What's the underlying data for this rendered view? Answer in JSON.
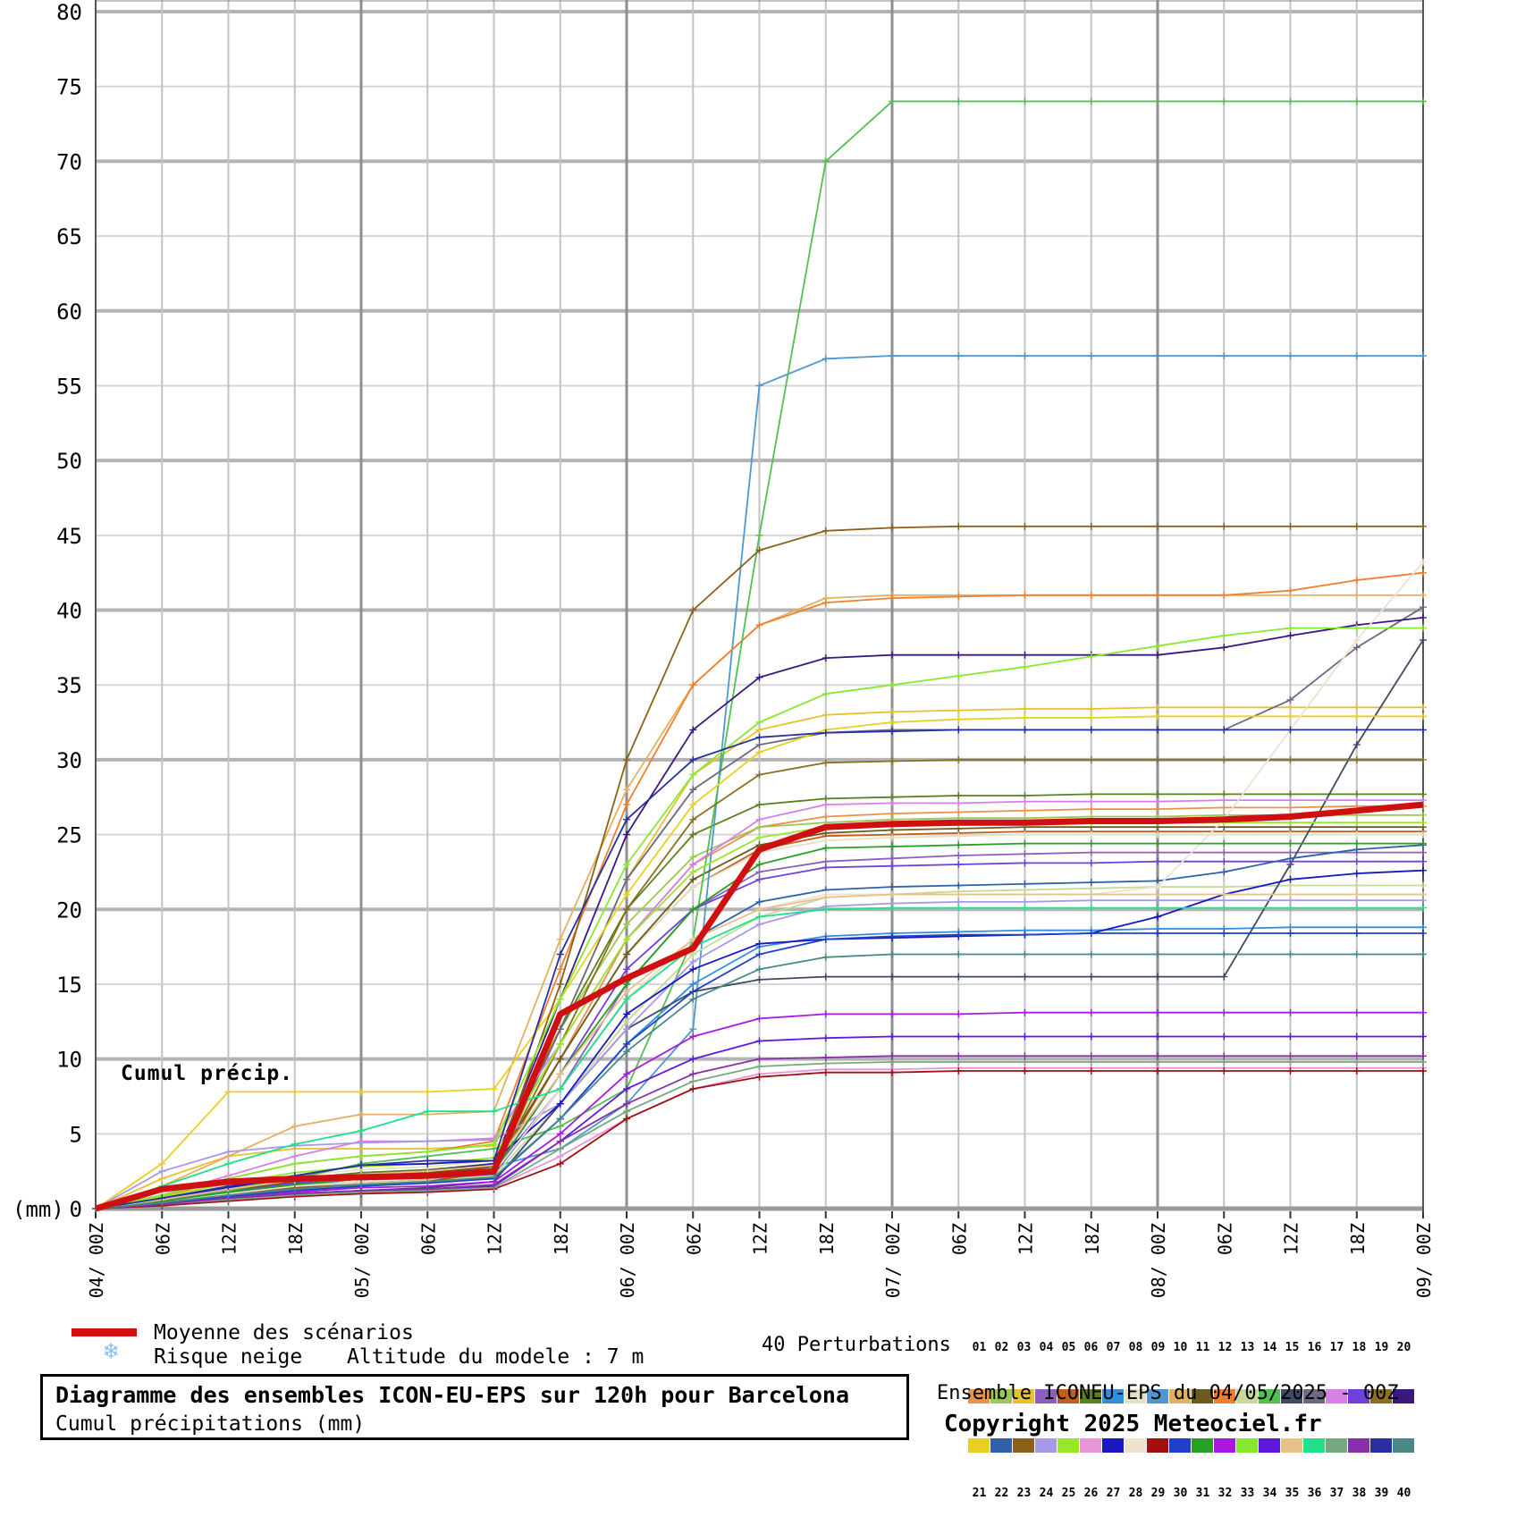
{
  "chart": {
    "annotation": "Cumul précip.",
    "y_unit_label": "(mm)",
    "y_tick_labels": [
      "0",
      "5",
      "10",
      "15",
      "20",
      "25",
      "30",
      "35",
      "40",
      "45",
      "50",
      "55",
      "60",
      "65",
      "70",
      "75",
      "80"
    ]
  },
  "legend": {
    "mean_label": "Moyenne des scénarios",
    "snow_label": "Risque neige",
    "snowflake_icon_glyph": "❄",
    "snowflake_color": "#8cc0ea",
    "altitude_label": "Altitude du modele : 7 m",
    "mean_color": "#d01010"
  },
  "perturbations": {
    "label": "40 Perturbations",
    "numbers_top": [
      "01",
      "02",
      "03",
      "04",
      "05",
      "06",
      "07",
      "08",
      "09",
      "10",
      "11",
      "12",
      "13",
      "14",
      "15",
      "16",
      "17",
      "18",
      "19",
      "20"
    ],
    "numbers_bottom": [
      "21",
      "22",
      "23",
      "24",
      "25",
      "26",
      "27",
      "28",
      "29",
      "30",
      "31",
      "32",
      "33",
      "34",
      "35",
      "36",
      "37",
      "38",
      "39",
      "40"
    ]
  },
  "footer": {
    "title": "Diagramme des ensembles ICON-EU-EPS sur 120h pour Barcelona",
    "subtitle": "Cumul précipitations (mm)",
    "ensemble_info": "Ensemble ICONEU-EPS du 04/05/2025 - 00Z",
    "copyright": "Copyright 2025 Meteociel.fr"
  },
  "chart_data": {
    "type": "line",
    "title": "Diagramme des ensembles ICON-EU-EPS sur 120h pour Barcelona",
    "subtitle": "Cumul précipitations (mm)",
    "ylabel": "(mm)",
    "ylim": [
      0,
      80.8
    ],
    "y_tick_step": 5,
    "grid": true,
    "x_hours": [
      0,
      6,
      12,
      18,
      24,
      30,
      36,
      42,
      48,
      54,
      60,
      66,
      72,
      78,
      84,
      90,
      96,
      102,
      108,
      114,
      120
    ],
    "x_tick_labels": [
      "04/ 00Z",
      "06Z",
      "12Z",
      "18Z",
      "05/ 00Z",
      "06Z",
      "12Z",
      "18Z",
      "06/ 00Z",
      "06Z",
      "12Z",
      "18Z",
      "07/ 00Z",
      "06Z",
      "12Z",
      "18Z",
      "08/ 00Z",
      "06Z",
      "12Z",
      "18Z",
      "09/ 00Z"
    ],
    "mean": {
      "name": "Moyenne des scénarios",
      "color": "#d01010",
      "values": [
        0,
        1.3,
        1.8,
        2.0,
        2.1,
        2.2,
        2.5,
        13,
        15.4,
        17.4,
        24.0,
        25.5,
        25.7,
        25.8,
        25.8,
        25.9,
        25.9,
        26.0,
        26.2,
        26.6,
        27.0
      ]
    },
    "series": [
      {
        "name": "01",
        "color": "#e8924a",
        "values": [
          0,
          0.5,
          1.0,
          1.5,
          1.8,
          2.0,
          2.5,
          10,
          18,
          23,
          25.5,
          26.2,
          26.4,
          26.5,
          26.6,
          26.7,
          26.7,
          26.8,
          26.8,
          26.9,
          26.9
        ]
      },
      {
        "name": "02",
        "color": "#9cc855",
        "values": [
          0,
          0.3,
          0.8,
          1.2,
          1.5,
          1.8,
          2.2,
          12,
          19,
          23.5,
          25.5,
          25.8,
          26.0,
          26.1,
          26.1,
          26.2,
          26.2,
          26.3,
          26.3,
          26.3,
          26.3
        ]
      },
      {
        "name": "03",
        "color": "#e8c030",
        "values": [
          0,
          2.0,
          3.5,
          4.0,
          4.0,
          4.0,
          4.2,
          12,
          22,
          29,
          32,
          33.0,
          33.2,
          33.3,
          33.4,
          33.4,
          33.5,
          33.5,
          33.5,
          33.5,
          33.5
        ]
      },
      {
        "name": "04",
        "color": "#8b5fbf",
        "values": [
          0,
          0.5,
          1.2,
          1.8,
          2.2,
          2.4,
          2.6,
          8,
          15,
          20,
          22.5,
          23.2,
          23.4,
          23.6,
          23.7,
          23.8,
          23.8,
          23.8,
          23.8,
          23.8,
          23.8
        ]
      },
      {
        "name": "05",
        "color": "#c06018",
        "values": [
          0,
          0.4,
          1.0,
          1.4,
          1.6,
          1.8,
          2.5,
          10,
          17,
          21.5,
          24,
          24.9,
          25.0,
          25.1,
          25.2,
          25.2,
          25.2,
          25.2,
          25.2,
          25.2,
          25.2
        ]
      },
      {
        "name": "06",
        "color": "#5a8020",
        "values": [
          0,
          0.6,
          1.4,
          2.0,
          2.4,
          2.6,
          3.0,
          12,
          20,
          25,
          27,
          27.4,
          27.5,
          27.6,
          27.6,
          27.7,
          27.7,
          27.7,
          27.7,
          27.7,
          27.7
        ]
      },
      {
        "name": "07",
        "color": "#2e8fe0",
        "values": [
          0,
          0.4,
          0.9,
          1.3,
          1.6,
          1.8,
          2.0,
          6,
          11,
          15,
          17.5,
          18.2,
          18.4,
          18.5,
          18.6,
          18.6,
          18.7,
          18.7,
          18.8,
          18.8,
          18.8
        ]
      },
      {
        "name": "08",
        "color": "#e6e0c4",
        "values": [
          0,
          0.8,
          1.6,
          2.2,
          2.6,
          2.8,
          3.2,
          10,
          17,
          21.5,
          23.8,
          24.6,
          24.8,
          24.9,
          25.0,
          25.0,
          25.0,
          25.0,
          25.0,
          25.0,
          25.0
        ]
      },
      {
        "name": "09",
        "color": "#4e97cf",
        "values": [
          0,
          0.5,
          1.0,
          1.5,
          2.0,
          2.2,
          2.8,
          4,
          7,
          12,
          55,
          56.8,
          57.0,
          57.0,
          57.0,
          57.0,
          57.0,
          57.0,
          57.0,
          57.0,
          57.0
        ]
      },
      {
        "name": "10",
        "color": "#e3b060",
        "values": [
          0,
          1.5,
          3.5,
          5.5,
          6.3,
          6.3,
          6.5,
          18,
          28,
          35,
          39,
          40.8,
          41.0,
          41.0,
          41.0,
          41.0,
          41.0,
          41.0,
          41.0,
          41.0,
          41.0
        ]
      },
      {
        "name": "11",
        "color": "#6b5a1e",
        "values": [
          0,
          0.6,
          1.2,
          1.8,
          2.2,
          2.4,
          2.8,
          10,
          17,
          22,
          24.3,
          25.1,
          25.3,
          25.4,
          25.5,
          25.5,
          25.5,
          25.5,
          25.5,
          25.5,
          25.5
        ]
      },
      {
        "name": "12",
        "color": "#f08030",
        "values": [
          0,
          0.8,
          2.0,
          3.0,
          3.5,
          3.8,
          4.5,
          16,
          27,
          35,
          39,
          40.5,
          40.8,
          40.9,
          41.0,
          41.0,
          41.0,
          41.0,
          41.3,
          42.0,
          42.5
        ]
      },
      {
        "name": "13",
        "color": "#c6d89a",
        "values": [
          0,
          0.4,
          0.9,
          1.4,
          1.7,
          1.9,
          2.2,
          7,
          12.5,
          17,
          19.5,
          20.8,
          21.0,
          21.2,
          21.3,
          21.4,
          21.5,
          21.5,
          21.6,
          21.6,
          21.6
        ]
      },
      {
        "name": "14",
        "color": "#50c050",
        "values": [
          0,
          0.5,
          1.2,
          2.0,
          3.0,
          3.5,
          4.0,
          5.5,
          8,
          18,
          45,
          70,
          74,
          74,
          74,
          74,
          74,
          74,
          74,
          74,
          74
        ]
      },
      {
        "name": "15",
        "color": "#3e4a62",
        "values": [
          0,
          0.3,
          0.7,
          1.0,
          1.2,
          1.4,
          1.8,
          7,
          12,
          14.5,
          15.3,
          15.5,
          15.5,
          15.5,
          15.5,
          15.5,
          15.5,
          15.5,
          23,
          31,
          38
        ]
      },
      {
        "name": "16",
        "color": "#6e6880",
        "values": [
          0,
          0.5,
          1.1,
          1.6,
          2.0,
          2.2,
          2.6,
          12,
          22,
          28,
          31,
          31.8,
          32.0,
          32.0,
          32.0,
          32.0,
          32.0,
          32.0,
          34.0,
          37.5,
          40.2
        ]
      },
      {
        "name": "17",
        "color": "#d880e8",
        "values": [
          0,
          0.9,
          2.2,
          3.5,
          4.5,
          4.5,
          4.7,
          11,
          18,
          23,
          26,
          27.0,
          27.1,
          27.1,
          27.2,
          27.2,
          27.2,
          27.3,
          27.3,
          27.3,
          27.3
        ]
      },
      {
        "name": "18",
        "color": "#7040d8",
        "values": [
          0,
          0.5,
          1.1,
          1.7,
          2.0,
          2.2,
          2.5,
          9,
          16,
          20,
          22,
          22.8,
          22.9,
          23.0,
          23.1,
          23.1,
          23.2,
          23.2,
          23.2,
          23.2,
          23.2
        ]
      },
      {
        "name": "19",
        "color": "#8a701e",
        "values": [
          0,
          0.4,
          1.0,
          1.5,
          1.8,
          2.0,
          2.4,
          11,
          20,
          26,
          29,
          29.8,
          29.9,
          30.0,
          30.0,
          30.0,
          30.0,
          30.0,
          30.0,
          30.0,
          30.0
        ]
      },
      {
        "name": "20",
        "color": "#3a1880",
        "values": [
          0,
          0.6,
          1.3,
          1.9,
          2.3,
          2.5,
          3.0,
          14,
          25,
          32,
          35.5,
          36.8,
          37.0,
          37.0,
          37.0,
          37.0,
          37.0,
          37.5,
          38.3,
          39.0,
          39.5
        ]
      },
      {
        "name": "21",
        "color": "#e8d020",
        "values": [
          0,
          3.0,
          7.8,
          7.8,
          7.8,
          7.8,
          8.0,
          14,
          21,
          27,
          30.5,
          32.0,
          32.5,
          32.7,
          32.8,
          32.8,
          32.9,
          32.9,
          32.9,
          32.9,
          32.9
        ]
      },
      {
        "name": "22",
        "color": "#3060a8",
        "values": [
          0,
          0.5,
          1.0,
          1.5,
          1.8,
          2.0,
          2.3,
          8,
          14,
          18,
          20.5,
          21.3,
          21.5,
          21.6,
          21.7,
          21.8,
          21.9,
          22.5,
          23.4,
          24.0,
          24.3
        ]
      },
      {
        "name": "23",
        "color": "#8b6018",
        "values": [
          0,
          0.4,
          1.0,
          1.4,
          1.6,
          1.8,
          2.5,
          15,
          30,
          40,
          44,
          45.3,
          45.5,
          45.6,
          45.6,
          45.6,
          45.6,
          45.6,
          45.6,
          45.6,
          45.6
        ]
      },
      {
        "name": "24",
        "color": "#a898e8",
        "values": [
          0,
          2.5,
          3.8,
          4.2,
          4.4,
          4.5,
          4.6,
          7,
          12,
          16.5,
          19,
          20.2,
          20.4,
          20.5,
          20.5,
          20.6,
          20.6,
          20.6,
          20.6,
          20.6,
          20.6
        ]
      },
      {
        "name": "25",
        "color": "#98e828",
        "values": [
          0,
          0.8,
          1.7,
          2.4,
          2.8,
          3.0,
          3.4,
          11,
          18,
          22.5,
          24.8,
          25.5,
          25.6,
          25.7,
          25.8,
          25.8,
          25.8,
          25.8,
          25.8,
          25.8,
          25.8
        ]
      },
      {
        "name": "26",
        "color": "#e895d8",
        "values": [
          0,
          0.3,
          0.6,
          0.9,
          1.1,
          1.2,
          1.4,
          3.5,
          6,
          8,
          9.0,
          9.3,
          9.3,
          9.4,
          9.4,
          9.4,
          9.4,
          9.4,
          9.4,
          9.4,
          9.4
        ]
      },
      {
        "name": "27",
        "color": "#1818c0",
        "values": [
          0,
          0.6,
          1.4,
          2.2,
          2.9,
          3.0,
          3.2,
          7,
          13,
          16,
          17.7,
          18.0,
          18.1,
          18.2,
          18.3,
          18.4,
          19.5,
          21.0,
          22.0,
          22.4,
          22.6
        ]
      },
      {
        "name": "28",
        "color": "#efe0d0",
        "values": [
          0,
          0.5,
          1.0,
          1.5,
          1.8,
          2.0,
          2.4,
          8,
          14,
          18,
          20,
          21.0,
          21.0,
          21.0,
          21.0,
          21.0,
          21.5,
          26.0,
          32.0,
          38.0,
          43.2
        ]
      },
      {
        "name": "29",
        "color": "#a01010",
        "values": [
          0,
          0.2,
          0.5,
          0.8,
          1.0,
          1.1,
          1.3,
          3,
          6,
          8,
          8.8,
          9.1,
          9.1,
          9.2,
          9.2,
          9.2,
          9.2,
          9.2,
          9.2,
          9.2,
          9.2
        ]
      },
      {
        "name": "30",
        "color": "#2040c8",
        "values": [
          0,
          0.4,
          0.8,
          1.2,
          1.5,
          1.7,
          2.0,
          6,
          11,
          14.5,
          17,
          18.0,
          18.2,
          18.3,
          18.3,
          18.4,
          18.4,
          18.4,
          18.4,
          18.4,
          18.4
        ]
      },
      {
        "name": "31",
        "color": "#28a028",
        "values": [
          0,
          0.5,
          1.1,
          1.6,
          2.0,
          2.2,
          2.5,
          9,
          15,
          20,
          23,
          24.1,
          24.2,
          24.3,
          24.4,
          24.4,
          24.4,
          24.4,
          24.4,
          24.4,
          24.4
        ]
      },
      {
        "name": "32",
        "color": "#a818e0",
        "values": [
          0,
          0.3,
          0.7,
          1.1,
          1.4,
          1.5,
          1.8,
          5,
          9,
          11.5,
          12.7,
          13.0,
          13.0,
          13.0,
          13.1,
          13.1,
          13.1,
          13.1,
          13.1,
          13.1,
          13.1
        ]
      },
      {
        "name": "33",
        "color": "#88e830",
        "values": [
          0,
          0.9,
          2.0,
          3.0,
          3.5,
          3.8,
          4.3,
          14,
          23,
          29,
          32.5,
          34.4,
          35.0,
          35.6,
          36.2,
          36.9,
          37.6,
          38.3,
          38.8,
          38.8,
          38.8
        ]
      },
      {
        "name": "34",
        "color": "#6018e0",
        "values": [
          0,
          0.3,
          0.6,
          1.0,
          1.2,
          1.3,
          1.5,
          4.5,
          8,
          10,
          11.2,
          11.4,
          11.5,
          11.5,
          11.5,
          11.5,
          11.5,
          11.5,
          11.5,
          11.5,
          11.5
        ]
      },
      {
        "name": "35",
        "color": "#e8c088",
        "values": [
          0,
          0.6,
          1.3,
          1.9,
          2.3,
          2.5,
          2.9,
          9,
          14.5,
          18,
          20,
          20.8,
          21.0,
          21.0,
          21.0,
          21.0,
          21.0,
          21.0,
          21.0,
          21.0,
          21.0
        ]
      },
      {
        "name": "36",
        "color": "#20e088",
        "values": [
          0,
          1.5,
          3.0,
          4.3,
          5.2,
          6.5,
          6.5,
          8,
          14,
          17.5,
          19.5,
          20.0,
          20.1,
          20.1,
          20.1,
          20.1,
          20.1,
          20.1,
          20.1,
          20.1,
          20.1
        ]
      },
      {
        "name": "37",
        "color": "#78a880",
        "values": [
          0,
          0.3,
          0.6,
          0.9,
          1.1,
          1.2,
          1.4,
          4,
          6.5,
          8.5,
          9.5,
          9.7,
          9.8,
          9.8,
          9.8,
          9.8,
          9.8,
          9.8,
          9.8,
          9.8,
          9.8
        ]
      },
      {
        "name": "38",
        "color": "#8830a8",
        "values": [
          0,
          0.3,
          0.7,
          1.0,
          1.2,
          1.3,
          1.6,
          4.5,
          7,
          9,
          10.0,
          10.1,
          10.2,
          10.2,
          10.2,
          10.2,
          10.2,
          10.2,
          10.2,
          10.2,
          10.2
        ]
      },
      {
        "name": "39",
        "color": "#2830a0",
        "values": [
          0,
          0.7,
          1.5,
          2.2,
          2.9,
          3.2,
          3.2,
          17,
          26,
          30,
          31.5,
          31.8,
          31.9,
          32.0,
          32.0,
          32.0,
          32.0,
          32.0,
          32.0,
          32.0,
          32.0
        ]
      },
      {
        "name": "40",
        "color": "#4a8888",
        "values": [
          0,
          0.4,
          0.9,
          1.3,
          1.6,
          1.8,
          2.1,
          6,
          10.5,
          14,
          16,
          16.8,
          17.0,
          17.0,
          17.0,
          17.0,
          17.0,
          17.0,
          17.0,
          17.0,
          17.0
        ]
      }
    ]
  }
}
